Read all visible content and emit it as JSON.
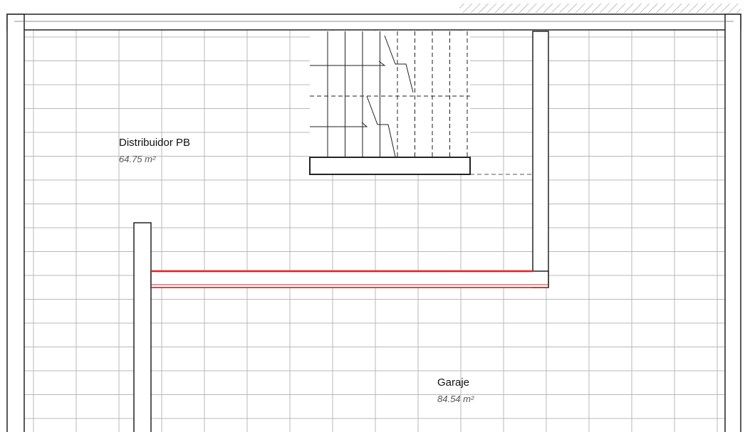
{
  "rooms": [
    {
      "name": "Distribuidor PB",
      "area": "64.75 m²"
    },
    {
      "name": "Garaje",
      "area": "84.54 m²"
    }
  ]
}
